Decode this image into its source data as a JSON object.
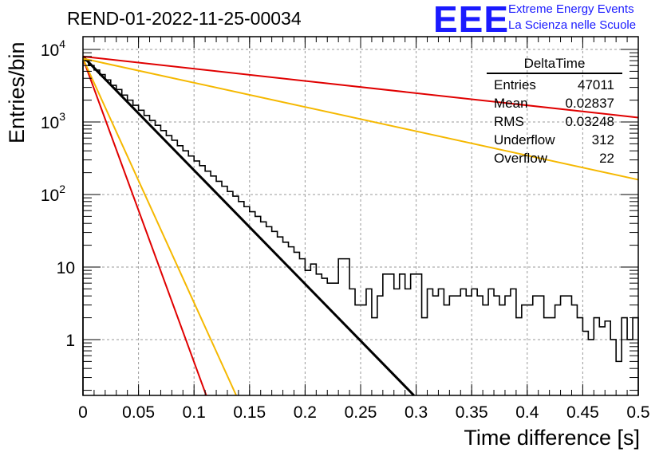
{
  "header": {
    "title": "REND-01-2022-11-25-00034",
    "logo_text": "EEE",
    "org_line1": "Extreme Energy Events",
    "org_line2": "La Scienza nelle Scuole"
  },
  "stats": {
    "title": "DeltaTime",
    "rows": [
      {
        "label": "Entries",
        "value": "47011"
      },
      {
        "label": "Mean",
        "value": "0.02837"
      },
      {
        "label": "RMS",
        "value": "0.03248"
      },
      {
        "label": "Underflow",
        "value": "312"
      },
      {
        "label": "Overflow",
        "value": "22"
      }
    ]
  },
  "chart_data": {
    "type": "line",
    "title": "REND-01-2022-11-25-00034",
    "xlabel": "Time difference [s]",
    "ylabel": "Entries/bin",
    "xlim": [
      0,
      0.5
    ],
    "ylim": [
      0.17,
      15000
    ],
    "yscale": "log",
    "grid": true,
    "legend": "top-right stats box",
    "x_ticks": [
      "0",
      "0.05",
      "0.1",
      "0.15",
      "0.2",
      "0.25",
      "0.3",
      "0.35",
      "0.4",
      "0.45",
      "0.5"
    ],
    "y_ticks": [
      {
        "value": 10000,
        "base": "10",
        "exp": "4"
      },
      {
        "value": 1000,
        "base": "10",
        "exp": "3"
      },
      {
        "value": 100,
        "base": "10",
        "exp": "2"
      },
      {
        "value": 10,
        "base": "10",
        "exp": ""
      },
      {
        "value": 1,
        "base": "1",
        "exp": ""
      }
    ],
    "histogram": {
      "bin_width": 0.005,
      "color": "#000000",
      "values": [
        7000,
        6000,
        5200,
        4500,
        3800,
        3200,
        2800,
        2350,
        2000,
        1700,
        1450,
        1230,
        1050,
        900,
        760,
        650,
        560,
        470,
        400,
        340,
        290,
        250,
        210,
        180,
        152,
        130,
        110,
        95,
        80,
        68,
        58,
        50,
        42,
        36,
        31,
        26,
        22,
        19,
        16,
        13,
        9,
        11,
        8,
        7,
        6,
        6,
        13,
        13,
        5,
        3,
        3,
        5,
        2,
        4,
        8,
        8,
        5,
        8,
        5,
        8,
        8,
        2,
        5,
        4,
        5,
        3,
        4,
        4,
        5,
        4,
        5,
        4,
        3,
        5,
        4,
        3,
        4,
        5,
        2,
        3,
        3,
        4,
        4,
        2,
        2,
        3,
        4,
        4,
        3,
        2,
        1.3,
        1,
        2,
        1.5,
        1.8,
        1,
        0.5,
        2,
        1,
        2
      ]
    },
    "fits": [
      {
        "color": "#000000",
        "x": [
          0,
          0.298
        ],
        "y": [
          8000,
          0.17
        ]
      },
      {
        "color": "#e00000",
        "x": [
          0,
          0.5
        ],
        "y": [
          8000,
          1150
        ]
      },
      {
        "color": "#f5b800",
        "x": [
          0,
          0.5
        ],
        "y": [
          7500,
          160
        ]
      },
      {
        "color": "#e00000",
        "x": [
          0,
          0.111
        ],
        "y": [
          7500,
          0.17
        ]
      },
      {
        "color": "#f5b800",
        "x": [
          0,
          0.138
        ],
        "y": [
          7500,
          0.17
        ]
      }
    ]
  }
}
